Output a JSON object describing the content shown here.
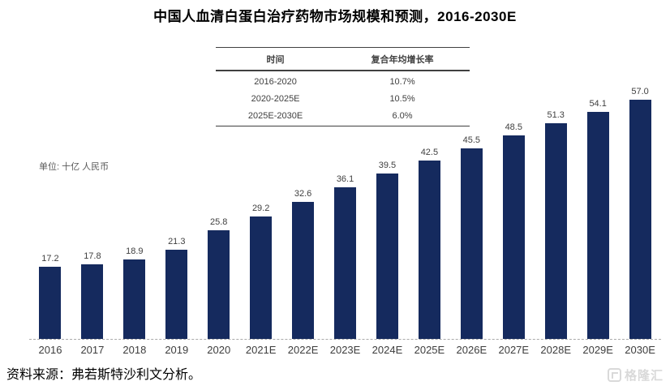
{
  "title": "中国人血清白蛋白治疗药物市场规模和预测，2016-2030E",
  "unit_label": "单位: 十亿 人民币",
  "cagr_table": {
    "headers": [
      "时间",
      "复合年均增长率"
    ],
    "rows": [
      {
        "period": "2016-2020",
        "rate": "10.7%"
      },
      {
        "period": "2020-2025E",
        "rate": "10.5%"
      },
      {
        "period": "2025E-2030E",
        "rate": "6.0%"
      }
    ]
  },
  "chart_data": {
    "type": "bar",
    "title": "中国人血清白蛋白治疗药物市场规模和预测，2016-2030E",
    "ylabel": "十亿 人民币",
    "ylim": [
      0,
      60
    ],
    "grid": false,
    "bar_color": "#152a5e",
    "categories": [
      "2016",
      "2017",
      "2018",
      "2019",
      "2020",
      "2021E",
      "2022E",
      "2023E",
      "2024E",
      "2025E",
      "2026E",
      "2027E",
      "2028E",
      "2029E",
      "2030E"
    ],
    "values": [
      17.2,
      17.8,
      18.9,
      21.3,
      25.8,
      29.2,
      32.6,
      36.1,
      39.5,
      42.5,
      45.5,
      48.5,
      51.3,
      54.1,
      57.0
    ]
  },
  "source": "资料来源：弗若斯特沙利文分析。",
  "watermark": "格隆汇"
}
